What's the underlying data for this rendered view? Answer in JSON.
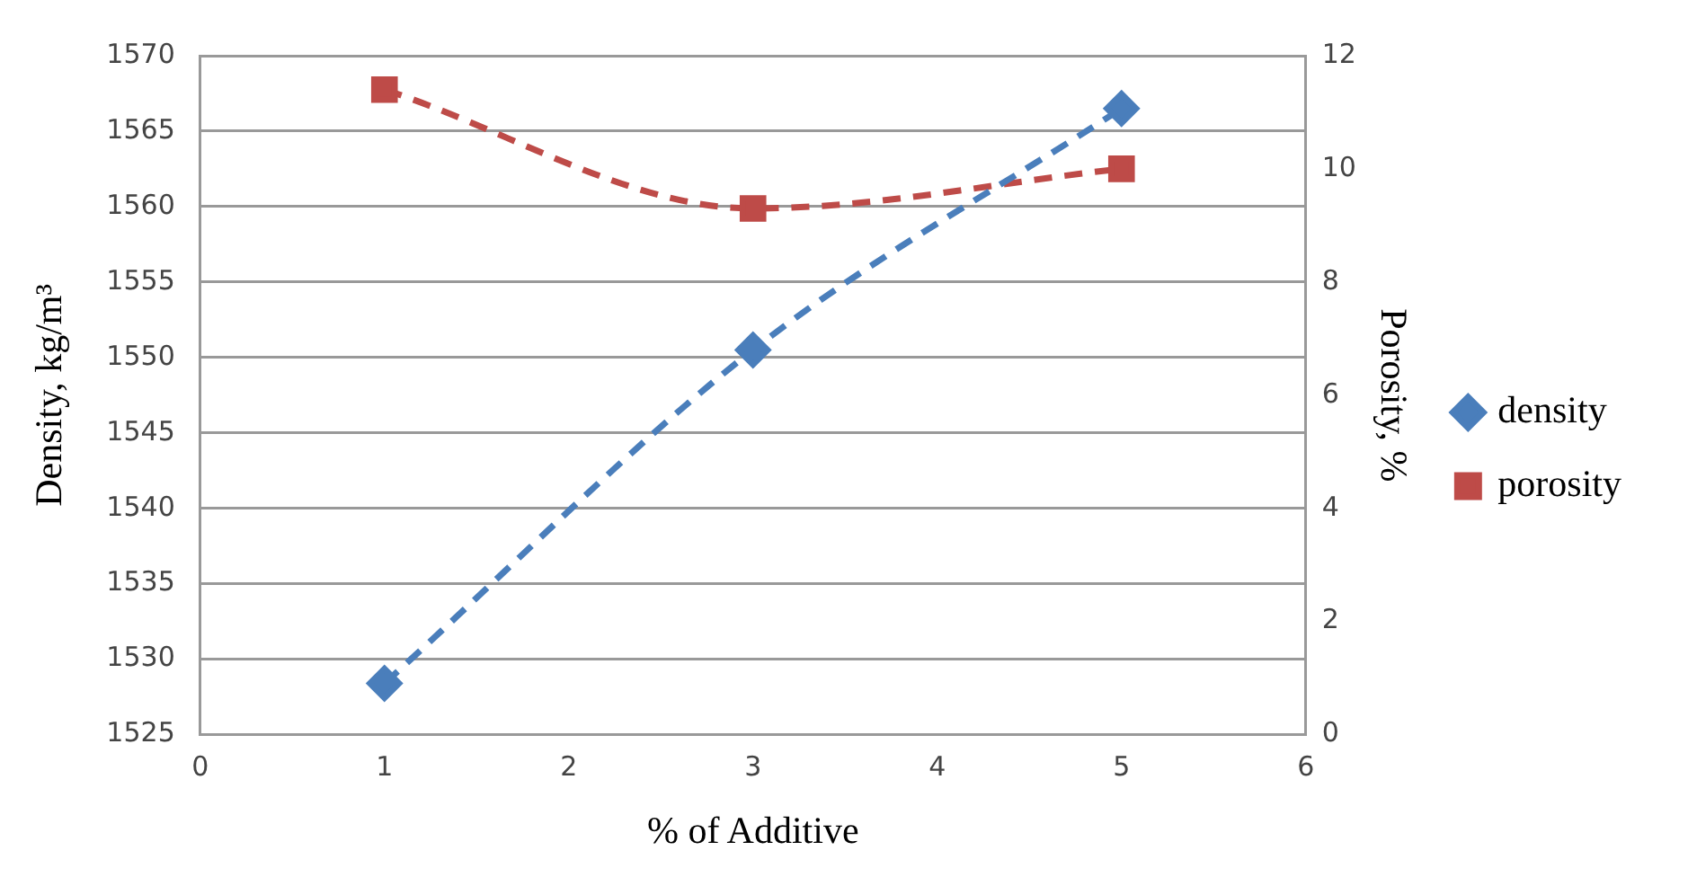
{
  "chart_data": {
    "type": "line",
    "xlabel": "% of Additive",
    "ylabel": "Density, kg/m³",
    "y2label": "Porosity, %",
    "xlim": [
      0,
      6
    ],
    "xticks": [
      0,
      1,
      2,
      3,
      4,
      5,
      6
    ],
    "ylim": [
      1525,
      1570
    ],
    "yticks": [
      1525,
      1530,
      1535,
      1540,
      1545,
      1550,
      1555,
      1560,
      1565,
      1570
    ],
    "y2lim": [
      0,
      12
    ],
    "y2ticks": [
      0,
      2,
      4,
      6,
      8,
      10,
      12
    ],
    "grid": "y",
    "legend": "right",
    "line_style": "dashed",
    "series": [
      {
        "name": "density",
        "color": "#4a7ebb",
        "x": [
          1,
          3,
          5
        ],
        "values": [
          1528.4,
          1550.5,
          1566.5
        ],
        "marker": "diamond"
      },
      {
        "name": "porosity",
        "color": "#be4b48",
        "x": [
          1,
          3,
          5
        ],
        "values": [
          11.4,
          9.3,
          10.0
        ],
        "marker": "square",
        "axis": "y2"
      }
    ]
  }
}
